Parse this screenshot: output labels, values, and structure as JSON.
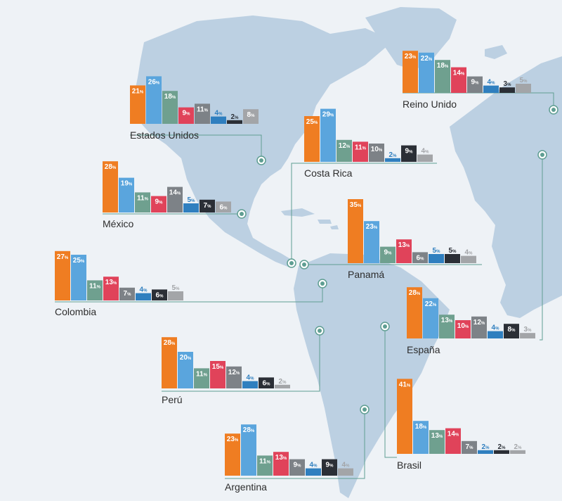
{
  "colors": {
    "background": "#eef2f6",
    "land": "#bcd0e2",
    "connector": "#5f9e92",
    "bar_series": [
      "#ef7d22",
      "#5aa5dd",
      "#6fa08f",
      "#e0435a",
      "#7d8287",
      "#2f7fbf",
      "#2b2f36",
      "#a3a5a8"
    ]
  },
  "chart_data": [
    {
      "type": "bar",
      "title": "Estados Unidos",
      "values": [
        21,
        26,
        18,
        9,
        11,
        4,
        2,
        8
      ]
    },
    {
      "type": "bar",
      "title": "Reino Unido",
      "values": [
        23,
        22,
        18,
        14,
        9,
        4,
        3,
        5
      ]
    },
    {
      "type": "bar",
      "title": "Costa Rica",
      "values": [
        25,
        29,
        12,
        11,
        10,
        2,
        9,
        4
      ]
    },
    {
      "type": "bar",
      "title": "México",
      "values": [
        28,
        19,
        11,
        9,
        14,
        5,
        7,
        6
      ]
    },
    {
      "type": "bar",
      "title": "Panamá",
      "values": [
        35,
        23,
        9,
        13,
        6,
        5,
        5,
        4
      ]
    },
    {
      "type": "bar",
      "title": "Colombia",
      "values": [
        27,
        25,
        11,
        13,
        7,
        4,
        6,
        5
      ]
    },
    {
      "type": "bar",
      "title": "España",
      "values": [
        28,
        22,
        13,
        10,
        12,
        4,
        8,
        3
      ]
    },
    {
      "type": "bar",
      "title": "Perú",
      "values": [
        28,
        20,
        11,
        15,
        12,
        4,
        6,
        2
      ]
    },
    {
      "type": "bar",
      "title": "Brasil",
      "values": [
        41,
        18,
        13,
        14,
        7,
        2,
        2,
        2
      ]
    },
    {
      "type": "bar",
      "title": "Argentina",
      "values": [
        23,
        28,
        11,
        13,
        9,
        4,
        9,
        4
      ]
    }
  ]
}
